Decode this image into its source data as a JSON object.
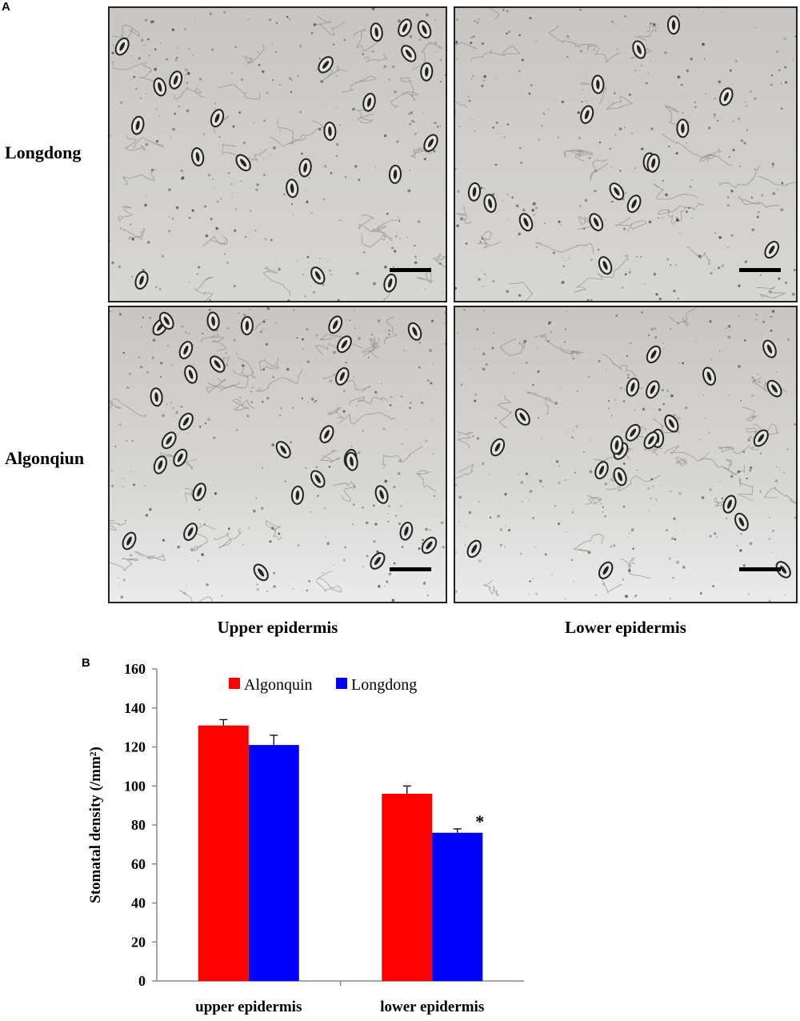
{
  "panel_a": {
    "letter": "A",
    "rows": [
      "Longdong",
      "Algonqiun"
    ],
    "columns": [
      "Upper epidermis",
      "Lower epidermis"
    ]
  },
  "panel_b": {
    "letter": "B"
  },
  "chart_data": {
    "type": "bar",
    "title": "",
    "xlabel": "",
    "ylabel": "Stomatal density (/mm²)",
    "categories": [
      "upper epidermis",
      "lower epidermis"
    ],
    "series": [
      {
        "name": "Algonquin",
        "color": "#ff0000",
        "values": [
          131,
          96
        ],
        "errors": [
          3,
          4
        ]
      },
      {
        "name": "Longdong",
        "color": "#0000ff",
        "values": [
          121,
          76
        ],
        "errors": [
          5,
          2
        ]
      }
    ],
    "ylim": [
      0,
      160
    ],
    "yticks": [
      0,
      20,
      40,
      60,
      80,
      100,
      120,
      140,
      160
    ],
    "annotations": [
      {
        "category": "lower epidermis",
        "series": "Longdong",
        "text": "*"
      }
    ],
    "grid": false,
    "legend": "top"
  }
}
